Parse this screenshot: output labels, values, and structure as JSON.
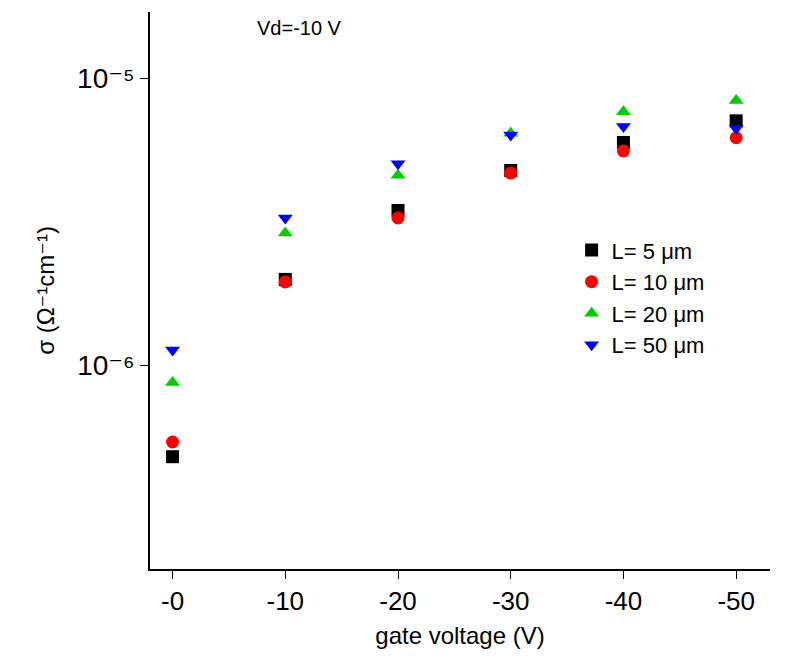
{
  "chart_data": {
    "type": "scatter",
    "annotations": [
      "Vd=-10 V"
    ],
    "x_label": "gate voltage (V)",
    "y_label": "σ (Ω⁻¹cm⁻¹)",
    "x": [
      0,
      -10,
      -20,
      -30,
      -40,
      -50
    ],
    "series": [
      {
        "name": "L= 5 μm",
        "color": "#000000",
        "marker": "square",
        "values": [
          4.8e-07,
          1.99e-06,
          3.46e-06,
          4.77e-06,
          5.97e-06,
          7.1e-06
        ]
      },
      {
        "name": "L= 10 μm",
        "color": "#ff0000",
        "marker": "circle",
        "values": [
          5.4e-07,
          1.95e-06,
          3.26e-06,
          4.67e-06,
          5.58e-06,
          6.2e-06
        ]
      },
      {
        "name": "L= 20 μm",
        "color": "#00cc00",
        "marker": "triangle-up",
        "values": [
          8.7e-07,
          2.89e-06,
          4.59e-06,
          6.43e-06,
          7.64e-06,
          8.36e-06
        ]
      },
      {
        "name": "L= 50 μm",
        "color": "#0000ff",
        "marker": "triangle-down",
        "values": [
          1.13e-06,
          3.26e-06,
          5.03e-06,
          6.34e-06,
          6.78e-06,
          6.68e-06
        ]
      }
    ],
    "xlim": [
      2,
      -53
    ],
    "xticks": [
      {
        "value": 0,
        "label": "-0"
      },
      -10,
      -20,
      -30,
      -40,
      -50
    ],
    "ylim": [
      1.95e-07,
      1.7e-05
    ],
    "yticks": [
      {
        "value": 1e-06,
        "label": "10⁻⁶"
      },
      {
        "value": 1e-05,
        "label": "10⁻⁵"
      }
    ],
    "log": "y",
    "grid": false,
    "legend": "right"
  }
}
